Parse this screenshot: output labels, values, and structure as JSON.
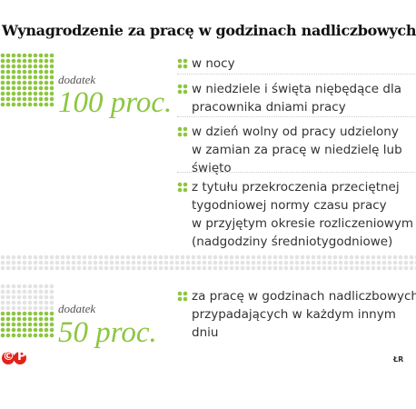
{
  "header": {
    "title": "Wynagrodzenie za pracę w godzinach nadliczbowych"
  },
  "sections": [
    {
      "label": "dodatek",
      "amount": "100 proc.",
      "items": [
        [
          "w nocy"
        ],
        [
          "w niedziele i święta niębędące dla",
          "pracownika dniami pracy"
        ],
        [
          "w dzień wolny od pracy udzielony",
          "w zamian za pracę w niedzielę lub",
          "święto"
        ],
        [
          "z tytułu przekroczenia przeciętnej",
          "tygodniowej normy czasu pracy",
          "w przyjętym okresie rozliczeniowym",
          "(nadgodziny średniotygodniowe)"
        ]
      ]
    },
    {
      "label": "dodatek",
      "amount": "50 proc.",
      "items": [
        [
          "za pracę w godzinach nadliczbowych",
          "przypadających w każdym innym",
          "dniu"
        ]
      ]
    }
  ],
  "footer": {
    "logo": "©P",
    "author": "ŁR"
  }
}
